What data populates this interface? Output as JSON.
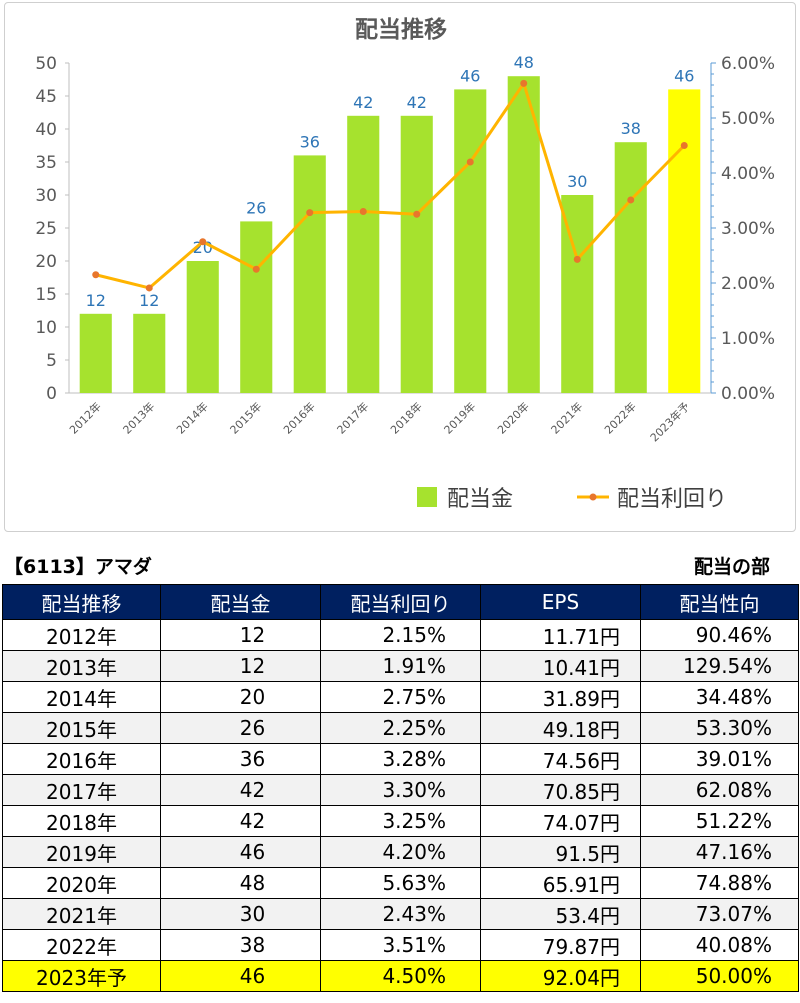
{
  "chart_data": {
    "type": "bar",
    "title": "配当推移",
    "categories": [
      "2012年",
      "2013年",
      "2014年",
      "2015年",
      "2016年",
      "2017年",
      "2018年",
      "2019年",
      "2020年",
      "2021年",
      "2022年",
      "2023年予"
    ],
    "series": [
      {
        "name": "配当金",
        "type": "bar",
        "axis": "left",
        "color": "#a6e22e",
        "highlight_color": "#ffff00",
        "values": [
          12,
          12,
          20,
          26,
          36,
          42,
          42,
          46,
          48,
          30,
          38,
          46
        ]
      },
      {
        "name": "配当利回り",
        "type": "line",
        "axis": "right",
        "color": "#ffb400",
        "marker_color": "#e8762c",
        "values": [
          2.15,
          1.91,
          2.75,
          2.25,
          3.28,
          3.3,
          3.25,
          4.2,
          5.63,
          2.43,
          3.51,
          4.5
        ]
      }
    ],
    "left_axis": {
      "min": 0,
      "max": 50,
      "ticks": [
        "0",
        "5",
        "10",
        "15",
        "20",
        "25",
        "30",
        "35",
        "40",
        "45",
        "50"
      ]
    },
    "right_axis": {
      "min": 0,
      "max": 6,
      "ticks": [
        "0.00%",
        "1.00%",
        "2.00%",
        "3.00%",
        "4.00%",
        "5.00%",
        "6.00%"
      ]
    },
    "legend_position": "bottom-right",
    "grid": false
  },
  "table": {
    "title_left": "【6113】アマダ",
    "title_right": "配当の部",
    "headers": [
      "配当推移",
      "配当金",
      "配当利回り",
      "EPS",
      "配当性向"
    ],
    "rows": [
      [
        "2012年",
        "12",
        "2.15%",
        "11.71円",
        "90.46%"
      ],
      [
        "2013年",
        "12",
        "1.91%",
        "10.41円",
        "129.54%"
      ],
      [
        "2014年",
        "20",
        "2.75%",
        "31.89円",
        "34.48%"
      ],
      [
        "2015年",
        "26",
        "2.25%",
        "49.18円",
        "53.30%"
      ],
      [
        "2016年",
        "36",
        "3.28%",
        "74.56円",
        "39.01%"
      ],
      [
        "2017年",
        "42",
        "3.30%",
        "70.85円",
        "62.08%"
      ],
      [
        "2018年",
        "42",
        "3.25%",
        "74.07円",
        "51.22%"
      ],
      [
        "2019年",
        "46",
        "4.20%",
        "91.5円",
        "47.16%"
      ],
      [
        "2020年",
        "48",
        "5.63%",
        "65.91円",
        "74.88%"
      ],
      [
        "2021年",
        "30",
        "2.43%",
        "53.4円",
        "73.07%"
      ],
      [
        "2022年",
        "38",
        "3.51%",
        "79.87円",
        "40.08%"
      ],
      [
        "2023年予",
        "46",
        "4.50%",
        "92.04円",
        "50.00%"
      ]
    ],
    "highlight_row_color": "#ffff00",
    "header_color": "#002060"
  }
}
